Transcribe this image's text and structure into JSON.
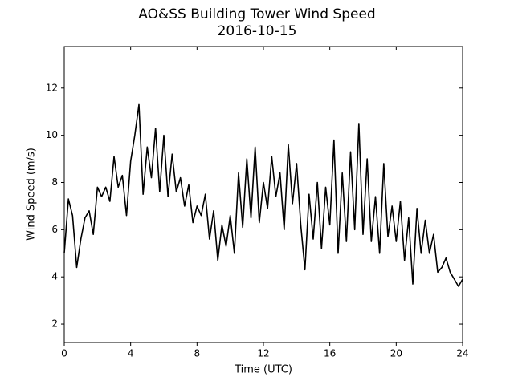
{
  "chart_data": {
    "type": "line",
    "title": "AO&SS Building Tower Wind Speed",
    "subtitle": "2016-10-15",
    "x_label": "Time (UTC)",
    "y_label": "Wind Speed (m/s)",
    "xlim": [
      0,
      24
    ],
    "xticks": [
      0,
      4,
      8,
      12,
      16,
      20,
      24
    ],
    "ylim": [
      1.22,
      13.76
    ],
    "yticks": [
      2,
      4,
      6,
      8,
      10,
      12
    ],
    "grid": false,
    "series": [
      {
        "name": "Wind Speed",
        "color": "#000000",
        "x": [
          0,
          0.25,
          0.5,
          0.75,
          1,
          1.25,
          1.5,
          1.75,
          2,
          2.25,
          2.5,
          2.75,
          3,
          3.25,
          3.5,
          3.75,
          4,
          4.25,
          4.5,
          4.75,
          5,
          5.25,
          5.5,
          5.75,
          6,
          6.25,
          6.5,
          6.75,
          7,
          7.25,
          7.5,
          7.75,
          8,
          8.25,
          8.5,
          8.75,
          9,
          9.25,
          9.5,
          9.75,
          10,
          10.25,
          10.5,
          10.75,
          11,
          11.25,
          11.5,
          11.75,
          12,
          12.25,
          12.5,
          12.75,
          13,
          13.25,
          13.5,
          13.75,
          14,
          14.25,
          14.5,
          14.75,
          15,
          15.25,
          15.5,
          15.75,
          16,
          16.25,
          16.5,
          16.75,
          17,
          17.25,
          17.5,
          17.75,
          18,
          18.25,
          18.5,
          18.75,
          19,
          19.25,
          19.5,
          19.75,
          20,
          20.25,
          20.5,
          20.75,
          21,
          21.25,
          21.5,
          21.75,
          22,
          22.25,
          22.5,
          22.75,
          23,
          23.25,
          23.5,
          23.75,
          24
        ],
        "values": [
          5.0,
          7.3,
          6.6,
          4.4,
          5.6,
          6.5,
          6.8,
          5.8,
          7.8,
          7.4,
          7.8,
          7.2,
          9.1,
          7.8,
          8.3,
          6.6,
          8.9,
          10.0,
          11.3,
          7.5,
          9.5,
          8.2,
          10.3,
          7.6,
          10.0,
          7.4,
          9.2,
          7.6,
          8.2,
          7.0,
          7.9,
          6.3,
          7.0,
          6.6,
          7.5,
          5.6,
          6.8,
          4.7,
          6.2,
          5.3,
          6.6,
          5.0,
          8.4,
          6.1,
          9.0,
          6.5,
          9.5,
          6.3,
          8.0,
          6.9,
          9.1,
          7.4,
          8.4,
          6.0,
          9.6,
          7.1,
          8.8,
          6.2,
          4.3,
          7.5,
          5.6,
          8.0,
          5.2,
          7.8,
          6.2,
          9.8,
          5.0,
          8.4,
          5.5,
          9.3,
          6.0,
          10.5,
          5.8,
          9.0,
          5.5,
          7.4,
          5.0,
          8.8,
          5.7,
          7.0,
          5.5,
          7.2,
          4.7,
          6.5,
          3.7,
          6.9,
          5.0,
          6.4,
          5.0,
          5.8,
          4.2,
          4.4,
          4.8,
          4.2,
          3.9,
          3.6,
          3.9
        ]
      }
    ]
  }
}
